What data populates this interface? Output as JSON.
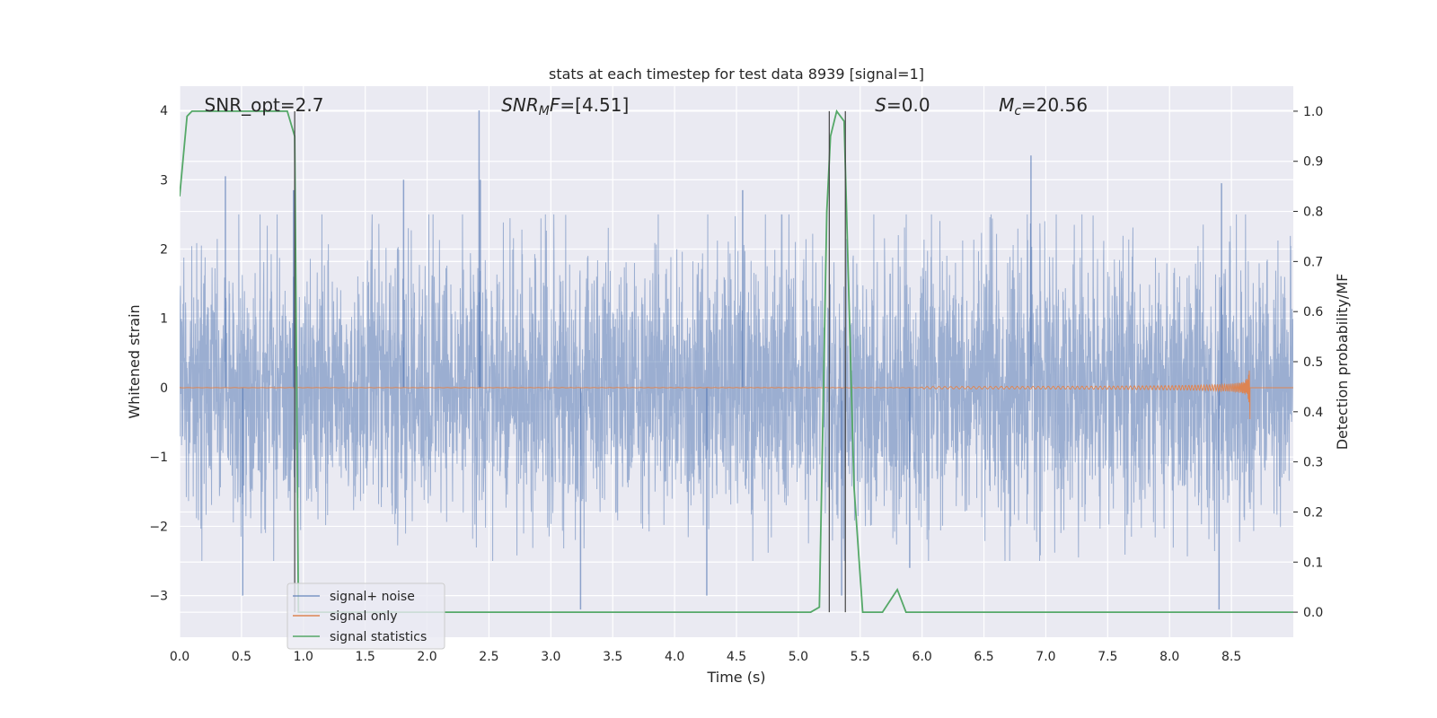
{
  "chart_data": {
    "type": "line",
    "title": "stats at each timestep for test data 8939 [signal=1]",
    "xlabel": "Time (s)",
    "ylabel": "Whitened strain",
    "y2label": "Detection probability/MF",
    "xlim": [
      0,
      9.0
    ],
    "ylim": [
      -3.6,
      4.35
    ],
    "y2lim": [
      -0.05,
      1.05
    ],
    "x_ticks": [
      "0.0",
      "0.5",
      "1.0",
      "1.5",
      "2.0",
      "2.5",
      "3.0",
      "3.5",
      "4.0",
      "4.5",
      "5.0",
      "5.5",
      "6.0",
      "6.5",
      "7.0",
      "7.5",
      "8.0",
      "8.5"
    ],
    "y_ticks": [
      "4",
      "3",
      "2",
      "1",
      "0",
      "−1",
      "−2",
      "−3"
    ],
    "y2_ticks": [
      "1.0",
      "0.9",
      "0.8",
      "0.7",
      "0.6",
      "0.5",
      "0.4",
      "0.3",
      "0.2",
      "0.1",
      "0.0"
    ],
    "grid": true,
    "legend_position": "lower-left",
    "annotations": [
      {
        "parts": [
          {
            "t": "SNR_opt=2.7"
          }
        ],
        "x": 0.2
      },
      {
        "parts": [
          {
            "t": "SNR",
            "i": true
          },
          {
            "t": "M",
            "i": true,
            "sub": true
          },
          {
            "t": "F",
            "i": true
          },
          {
            "t": "=[4.51]"
          }
        ],
        "x": 2.6
      },
      {
        "parts": [
          {
            "t": "S",
            "i": true
          },
          {
            "t": "=0.0"
          }
        ],
        "x": 5.62
      },
      {
        "parts": [
          {
            "t": "M",
            "i": true
          },
          {
            "t": "c",
            "i": true,
            "sub": true
          },
          {
            "t": "=20.56"
          }
        ],
        "x": 6.62
      }
    ],
    "vertical_lines": [
      0.93,
      5.25,
      5.38
    ],
    "series": [
      {
        "name": "signal+ noise",
        "color": "#4c72b0",
        "opacity": 0.5,
        "kind": "noise",
        "spikes": [
          [
            0.37,
            3.05
          ],
          [
            0.92,
            2.85
          ],
          [
            2.42,
            4.0
          ],
          [
            2.43,
            3.0
          ],
          [
            6.88,
            3.35
          ],
          [
            1.81,
            3.0
          ],
          [
            4.55,
            2.85
          ],
          [
            0.51,
            -3.0
          ],
          [
            3.24,
            -3.2
          ],
          [
            4.26,
            -3.0
          ],
          [
            5.35,
            -3.0
          ],
          [
            5.9,
            -2.6
          ],
          [
            8.4,
            -3.2
          ],
          [
            8.42,
            2.95
          ]
        ]
      },
      {
        "name": "signal only",
        "color": "#dd8452",
        "kind": "chirp",
        "end": 8.65,
        "amplitude": 0.5
      },
      {
        "name": "signal statistics",
        "color": "#55a868",
        "axis": "right",
        "x": [
          0.0,
          0.06,
          0.1,
          0.2,
          0.87,
          0.93,
          0.96,
          1.0,
          5.1,
          5.17,
          5.23,
          5.26,
          5.31,
          5.37,
          5.45,
          5.52,
          5.6,
          5.68,
          5.8,
          5.87,
          5.93,
          9.0
        ],
        "y": [
          0.83,
          0.99,
          1.0,
          1.0,
          1.0,
          0.95,
          0.0,
          0.0,
          0.0,
          0.01,
          0.8,
          0.95,
          1.0,
          0.98,
          0.25,
          0.0,
          0.0,
          0.0,
          0.045,
          0.0,
          0.0,
          0.0
        ]
      }
    ]
  }
}
